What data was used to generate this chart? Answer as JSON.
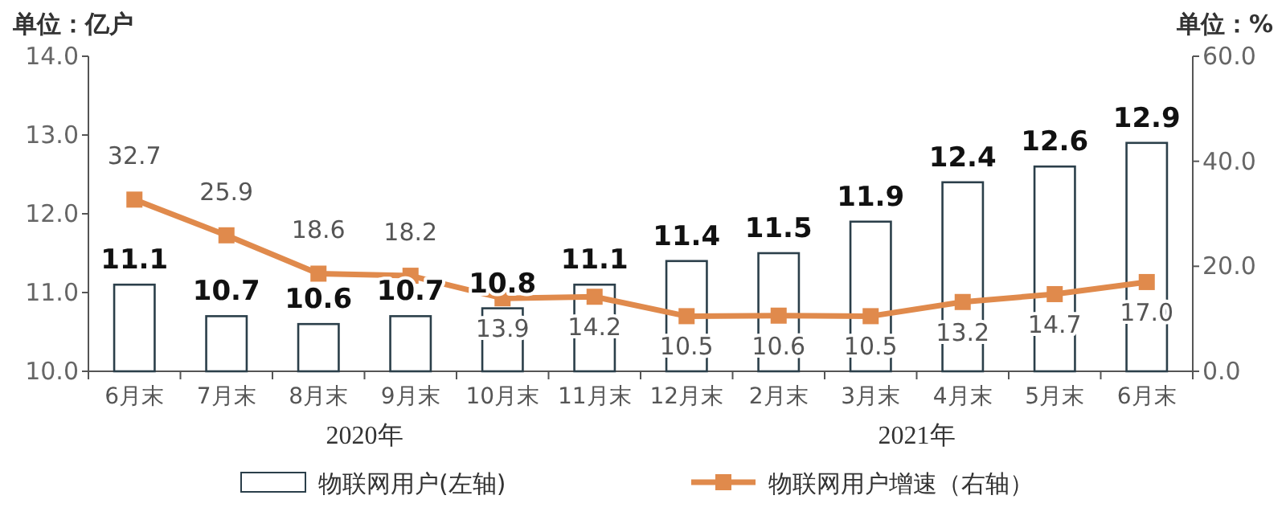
{
  "chart_data": {
    "type": "bar",
    "ylabel": "单位：亿户",
    "y2label": "单位：%",
    "categories": [
      "6月末",
      "7月末",
      "8月末",
      "9月末",
      "10月末",
      "11月末",
      "12月末",
      "2月末",
      "3月末",
      "4月末",
      "5月末",
      "6月末"
    ],
    "series": [
      {
        "name": "物联网用户(左轴)",
        "color": "#2b3f4a",
        "values": [
          11.1,
          10.7,
          10.6,
          10.7,
          10.8,
          11.1,
          11.4,
          11.5,
          11.9,
          12.4,
          12.6,
          12.9
        ]
      },
      {
        "name": "物联网用户增速（右轴）",
        "type": "line",
        "axis": "y2",
        "color": "#e08a4c",
        "marker": "square",
        "values": [
          32.7,
          25.9,
          18.6,
          18.2,
          13.9,
          14.2,
          10.5,
          10.6,
          10.5,
          13.2,
          14.7,
          17.0
        ],
        "value_labels": [
          "32.7",
          "25.9",
          "18.6",
          "18.2",
          "13.9",
          "14.2",
          "10.5",
          "10.6",
          "10.5",
          "13.2",
          "14.7",
          "17.0"
        ]
      }
    ],
    "ylim": [
      10,
      14
    ],
    "yticks": [
      {
        "value": 10,
        "label": "10.0"
      },
      {
        "value": 11,
        "label": "11.0"
      },
      {
        "value": 12,
        "label": "12.0"
      },
      {
        "value": 13,
        "label": "13.0"
      },
      {
        "value": 14,
        "label": "14.0"
      }
    ],
    "y2lim": [
      0,
      60
    ],
    "y2ticks": [
      {
        "value": 0,
        "label": "0.0"
      },
      {
        "value": 20,
        "label": "20.0"
      },
      {
        "value": 40,
        "label": "40.0"
      },
      {
        "value": 60,
        "label": "60.0"
      }
    ],
    "data_labels": true,
    "grid": false,
    "legend": "bottom",
    "annotations": [
      "2020年",
      "2021年"
    ]
  }
}
